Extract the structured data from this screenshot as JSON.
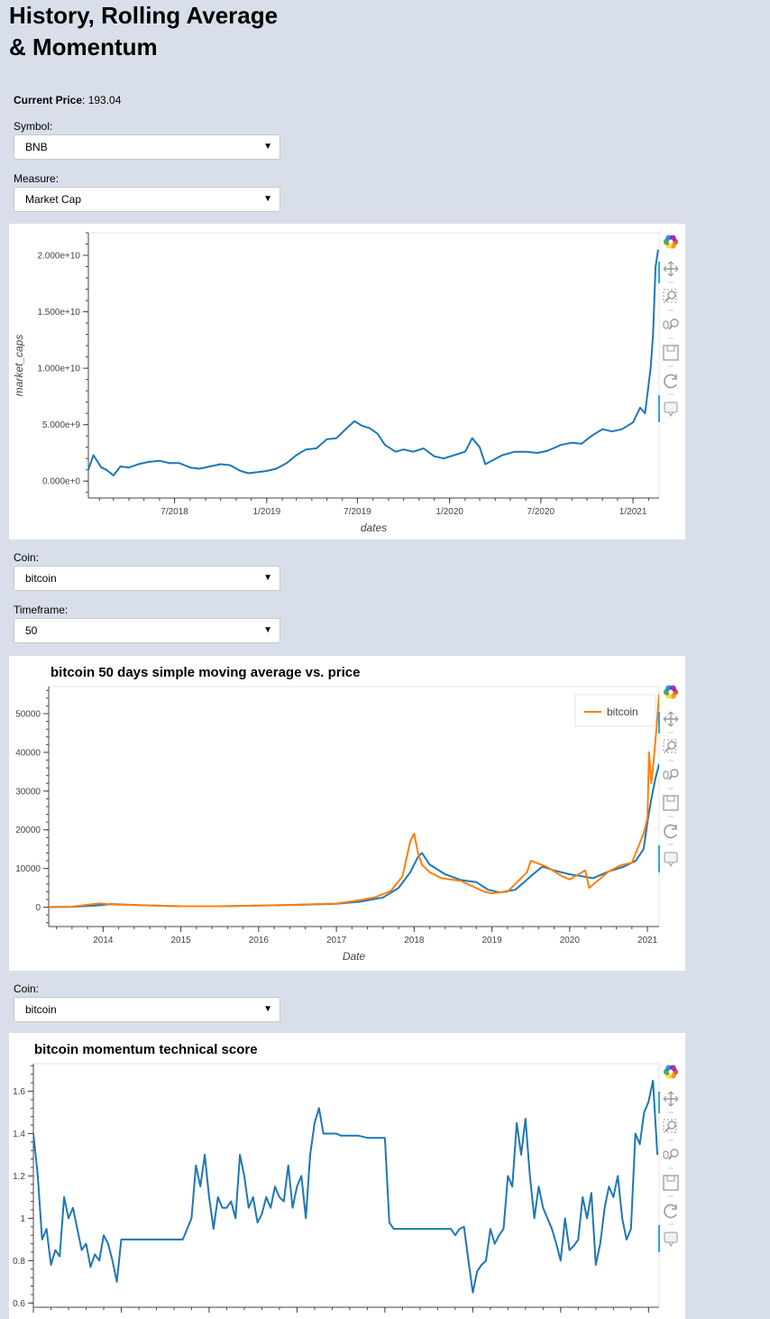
{
  "page": {
    "title_line1": "History, Rolling Average",
    "title_line2": "& Momentum",
    "current_price_label": "Current Price",
    "current_price_value": ": 193.04"
  },
  "controls": {
    "symbol_label": "Symbol:",
    "symbol_value": "BNB",
    "measure_label": "Measure:",
    "measure_value": "Market Cap",
    "coin1_label": "Coin:",
    "coin1_value": "bitcoin",
    "timeframe_label": "Timeframe:",
    "timeframe_value": "50",
    "coin2_label": "Coin:",
    "coin2_value": "bitcoin"
  },
  "toolbar": [
    "bokeh-logo-icon",
    "pan-icon",
    "box-zoom-icon",
    "wheel-zoom-icon",
    "save-icon",
    "reset-icon",
    "hover-icon"
  ],
  "chart_data": [
    {
      "type": "line",
      "title": "",
      "xlabel": "dates",
      "ylabel": "market_caps",
      "x_ticks": [
        "7/2018",
        "1/2019",
        "7/2019",
        "1/2020",
        "7/2020",
        "1/2021"
      ],
      "y_ticks": [
        "0.000e+0",
        "5.000e+9",
        "1.000e+10",
        "1.500e+10",
        "2.000e+10"
      ],
      "xlim": [
        "2018-01-10",
        "2021-02-22"
      ],
      "ylim": [
        -1500000000,
        22000000000
      ],
      "color": "#1f77b4",
      "series": [
        {
          "x": [
            "2018-01-10",
            "2018-01-20",
            "2018-02-05",
            "2018-02-15",
            "2018-03-01",
            "2018-03-15",
            "2018-04-01",
            "2018-04-20",
            "2018-05-10",
            "2018-06-01",
            "2018-06-20",
            "2018-07-10",
            "2018-08-01",
            "2018-08-20",
            "2018-09-10",
            "2018-10-01",
            "2018-10-20",
            "2018-11-10",
            "2018-11-25",
            "2018-12-15",
            "2019-01-01",
            "2019-01-20",
            "2019-02-10",
            "2019-03-01",
            "2019-03-20",
            "2019-04-10",
            "2019-05-01",
            "2019-05-20",
            "2019-06-10",
            "2019-06-25",
            "2019-07-10",
            "2019-07-25",
            "2019-08-10",
            "2019-08-25",
            "2019-09-15",
            "2019-10-01",
            "2019-10-20",
            "2019-11-10",
            "2019-12-01",
            "2019-12-20",
            "2020-01-10",
            "2020-02-01",
            "2020-02-15",
            "2020-03-01",
            "2020-03-12",
            "2020-03-25",
            "2020-04-15",
            "2020-05-10",
            "2020-06-01",
            "2020-06-25",
            "2020-07-15",
            "2020-08-10",
            "2020-09-01",
            "2020-09-20",
            "2020-10-10",
            "2020-11-01",
            "2020-11-20",
            "2020-12-10",
            "2021-01-01",
            "2021-01-15",
            "2021-01-25",
            "2021-02-05",
            "2021-02-10",
            "2021-02-15",
            "2021-02-20"
          ],
          "y": [
            1000000000,
            2300000000,
            1200000000,
            1000000000,
            500000000,
            1300000000,
            1200000000,
            1500000000,
            1700000000,
            1800000000,
            1600000000,
            1600000000,
            1200000000,
            1100000000,
            1300000000,
            1500000000,
            1400000000,
            900000000,
            700000000,
            800000000,
            900000000,
            1100000000,
            1600000000,
            2300000000,
            2800000000,
            2900000000,
            3700000000,
            3800000000,
            4700000000,
            5300000000,
            4900000000,
            4700000000,
            4200000000,
            3200000000,
            2600000000,
            2800000000,
            2600000000,
            2900000000,
            2200000000,
            2000000000,
            2300000000,
            2600000000,
            3800000000,
            3000000000,
            1500000000,
            1800000000,
            2300000000,
            2600000000,
            2600000000,
            2500000000,
            2700000000,
            3200000000,
            3400000000,
            3300000000,
            4000000000,
            4600000000,
            4400000000,
            4600000000,
            5200000000,
            6500000000,
            6000000000,
            10000000000,
            13000000000,
            19000000000,
            20500000000
          ]
        }
      ]
    },
    {
      "type": "line",
      "title": "bitcoin 50 days simple moving average vs. price",
      "xlabel": "Date",
      "ylabel": "",
      "x_ticks": [
        "2014",
        "2015",
        "2016",
        "2017",
        "2018",
        "2019",
        "2020",
        "2021"
      ],
      "y_ticks": [
        "0",
        "10000",
        "20000",
        "30000",
        "40000",
        "50000"
      ],
      "xlim": [
        2013.3,
        2021.15
      ],
      "ylim": [
        -5000,
        57000
      ],
      "legend": {
        "label": "bitcoin",
        "position": "top-right"
      },
      "series": [
        {
          "name": "",
          "color": "#1f77b4",
          "x": [
            2013.3,
            2013.6,
            2013.9,
            2014.1,
            2014.5,
            2015.0,
            2015.5,
            2016.0,
            2016.5,
            2017.0,
            2017.3,
            2017.6,
            2017.8,
            2017.95,
            2018.05,
            2018.1,
            2018.2,
            2018.4,
            2018.6,
            2018.8,
            2018.95,
            2019.1,
            2019.3,
            2019.5,
            2019.65,
            2019.8,
            2020.0,
            2020.15,
            2020.3,
            2020.5,
            2020.7,
            2020.85,
            2020.95,
            2021.0,
            2021.05,
            2021.1,
            2021.15
          ],
          "y": [
            0,
            100,
            400,
            800,
            500,
            250,
            250,
            400,
            600,
            900,
            1400,
            2500,
            5000,
            9000,
            13000,
            14000,
            11000,
            8500,
            7000,
            6500,
            4500,
            3800,
            4500,
            8000,
            10500,
            9500,
            8500,
            8000,
            7500,
            9200,
            10500,
            12000,
            15000,
            22000,
            28000,
            33000,
            37000
          ]
        },
        {
          "name": "bitcoin",
          "color": "#ff7f0e",
          "x": [
            2013.3,
            2013.6,
            2013.95,
            2014.1,
            2014.5,
            2015.0,
            2015.5,
            2016.0,
            2016.5,
            2017.0,
            2017.3,
            2017.5,
            2017.7,
            2017.85,
            2017.95,
            2018.0,
            2018.05,
            2018.1,
            2018.2,
            2018.35,
            2018.6,
            2018.9,
            2019.0,
            2019.2,
            2019.45,
            2019.5,
            2019.7,
            2019.9,
            2020.0,
            2020.2,
            2020.25,
            2020.5,
            2020.65,
            2020.8,
            2020.95,
            2021.0,
            2021.02,
            2021.05,
            2021.08,
            2021.12,
            2021.15
          ],
          "y": [
            50,
            120,
            1000,
            700,
            500,
            250,
            250,
            430,
            650,
            950,
            1800,
            2600,
            4200,
            8000,
            17000,
            19000,
            14000,
            11000,
            9000,
            7500,
            6800,
            4000,
            3600,
            4000,
            9000,
            12000,
            10500,
            8000,
            7200,
            9500,
            5000,
            9200,
            10800,
            11500,
            19000,
            23000,
            40000,
            32000,
            38000,
            47000,
            55000
          ]
        }
      ]
    },
    {
      "type": "line",
      "title": "bitcoin momentum technical score",
      "xlabel": "",
      "ylabel": "",
      "x_ticks": [],
      "y_ticks": [
        "0.6",
        "0.8",
        "1",
        "1.2",
        "1.4",
        "1.6"
      ],
      "xlim": [
        2014.0,
        2021.12
      ],
      "ylim": [
        0.58,
        1.73
      ],
      "color": "#1f77b4",
      "series": [
        {
          "x": [
            2014.0,
            2014.05,
            2014.1,
            2014.15,
            2014.2,
            2014.25,
            2014.3,
            2014.35,
            2014.4,
            2014.45,
            2014.5,
            2014.55,
            2014.6,
            2014.65,
            2014.7,
            2014.75,
            2014.8,
            2014.85,
            2014.9,
            2014.95,
            2015.0,
            2015.05,
            2015.1,
            2015.2,
            2015.3,
            2015.4,
            2015.5,
            2015.6,
            2015.7,
            2015.75,
            2015.8,
            2015.85,
            2015.9,
            2015.95,
            2016.0,
            2016.05,
            2016.1,
            2016.15,
            2016.2,
            2016.25,
            2016.3,
            2016.35,
            2016.4,
            2016.45,
            2016.5,
            2016.55,
            2016.6,
            2016.65,
            2016.7,
            2016.75,
            2016.8,
            2016.85,
            2016.9,
            2016.95,
            2017.0,
            2017.05,
            2017.1,
            2017.15,
            2017.2,
            2017.25,
            2017.3,
            2017.35,
            2017.4,
            2017.45,
            2017.5,
            2017.6,
            2017.7,
            2017.8,
            2017.9,
            2018.0,
            2018.05,
            2018.1,
            2018.2,
            2018.3,
            2018.4,
            2018.5,
            2018.6,
            2018.7,
            2018.75,
            2018.8,
            2018.85,
            2018.9,
            2018.95,
            2019.0,
            2019.05,
            2019.1,
            2019.15,
            2019.2,
            2019.25,
            2019.3,
            2019.35,
            2019.4,
            2019.45,
            2019.5,
            2019.55,
            2019.6,
            2019.65,
            2019.7,
            2019.75,
            2019.8,
            2019.85,
            2019.9,
            2019.95,
            2020.0,
            2020.05,
            2020.1,
            2020.15,
            2020.2,
            2020.25,
            2020.3,
            2020.35,
            2020.4,
            2020.45,
            2020.5,
            2020.55,
            2020.6,
            2020.65,
            2020.7,
            2020.75,
            2020.8,
            2020.85,
            2020.9,
            2020.95,
            2021.0,
            2021.05,
            2021.1
          ],
          "y": [
            1.4,
            1.2,
            0.9,
            0.95,
            0.78,
            0.85,
            0.82,
            1.1,
            1.0,
            1.05,
            0.95,
            0.85,
            0.88,
            0.77,
            0.83,
            0.8,
            0.92,
            0.88,
            0.8,
            0.7,
            0.9,
            0.9,
            0.9,
            0.9,
            0.9,
            0.9,
            0.9,
            0.9,
            0.9,
            0.95,
            1.0,
            1.25,
            1.15,
            1.3,
            1.1,
            0.95,
            1.1,
            1.05,
            1.05,
            1.08,
            1.0,
            1.3,
            1.2,
            1.05,
            1.1,
            0.98,
            1.02,
            1.1,
            1.05,
            1.15,
            1.1,
            1.08,
            1.25,
            1.05,
            1.15,
            1.2,
            1.0,
            1.3,
            1.45,
            1.52,
            1.4,
            1.4,
            1.4,
            1.4,
            1.39,
            1.39,
            1.39,
            1.38,
            1.38,
            1.38,
            0.98,
            0.95,
            0.95,
            0.95,
            0.95,
            0.95,
            0.95,
            0.95,
            0.95,
            0.92,
            0.95,
            0.96,
            0.8,
            0.65,
            0.75,
            0.78,
            0.8,
            0.95,
            0.88,
            0.92,
            0.95,
            1.2,
            1.15,
            1.45,
            1.3,
            1.47,
            1.2,
            1.0,
            1.15,
            1.05,
            1.0,
            0.95,
            0.88,
            0.8,
            1.0,
            0.85,
            0.87,
            0.9,
            1.1,
            1.0,
            1.12,
            0.78,
            0.88,
            1.05,
            1.15,
            1.1,
            1.2,
            1.0,
            0.9,
            0.95,
            1.4,
            1.35,
            1.5,
            1.55,
            1.65,
            1.3
          ]
        }
      ]
    }
  ]
}
